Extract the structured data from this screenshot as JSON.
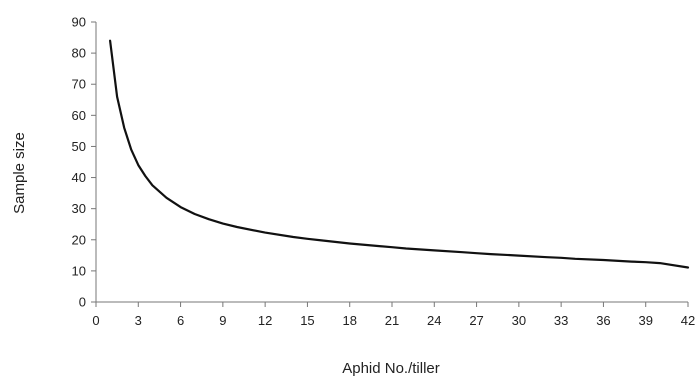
{
  "chart_data": {
    "type": "line",
    "title": "",
    "xlabel": "Aphid No./tiller",
    "ylabel": "Sample size",
    "xlim": [
      0,
      42
    ],
    "ylim": [
      0,
      90
    ],
    "x_ticks": [
      0,
      3,
      6,
      9,
      12,
      15,
      18,
      21,
      24,
      27,
      30,
      33,
      36,
      39,
      42
    ],
    "y_ticks": [
      0,
      10,
      20,
      30,
      40,
      50,
      60,
      70,
      80,
      90
    ],
    "grid": false,
    "legend": "none",
    "series": [
      {
        "color": "#111111",
        "x": [
          1,
          1.5,
          2,
          2.5,
          3,
          3.5,
          4,
          5,
          6,
          7,
          8,
          9,
          10,
          12,
          14,
          15,
          16,
          18,
          20,
          21,
          22,
          24,
          26,
          27,
          28,
          30,
          32,
          33,
          34,
          36,
          38,
          39,
          40,
          42
        ],
        "y": [
          84,
          66,
          56,
          49,
          44,
          40.5,
          37.5,
          33.5,
          30.5,
          28.3,
          26.6,
          25.2,
          24.1,
          22.3,
          20.9,
          20.3,
          19.8,
          18.8,
          18,
          17.6,
          17.2,
          16.6,
          16,
          15.7,
          15.4,
          14.9,
          14.4,
          14.2,
          13.9,
          13.5,
          13,
          12.8,
          12.5,
          11.1
        ]
      }
    ]
  }
}
